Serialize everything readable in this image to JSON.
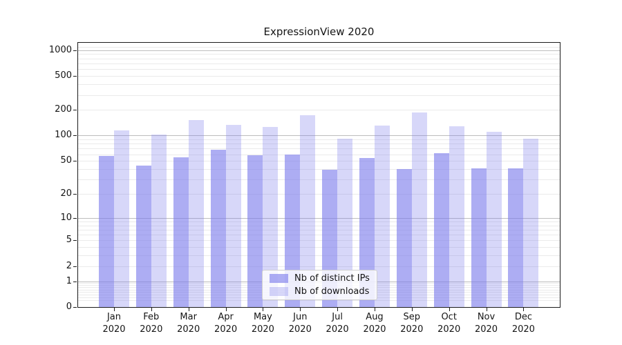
{
  "figure": {
    "background": "#ffffff"
  },
  "chart_data": {
    "type": "bar",
    "title": "ExpressionView 2020",
    "x_tick_months": [
      "Jan",
      "Feb",
      "Mar",
      "Apr",
      "May",
      "Jun",
      "Jul",
      "Aug",
      "Sep",
      "Oct",
      "Nov",
      "Dec"
    ],
    "x_tick_year": "2020",
    "series": [
      {
        "name": "Nb of distinct IPs",
        "color": "rgba(122,122,235,0.62)",
        "values": [
          57,
          44,
          55,
          68,
          58,
          60,
          39,
          54,
          40,
          62,
          41,
          41
        ]
      },
      {
        "name": "Nb of downloads",
        "color": "rgba(122,122,235,0.30)",
        "values": [
          115,
          103,
          152,
          134,
          125,
          174,
          91,
          130,
          188,
          128,
          111,
          92
        ]
      }
    ],
    "y_scale": "log1p",
    "ylim": [
      0,
      1220
    ],
    "y_tick_labels": [
      "1000",
      "500",
      "200",
      "100",
      "50",
      "20",
      "10",
      "5",
      "2",
      "1",
      "0"
    ],
    "y_tick_values": [
      1000,
      500,
      200,
      100,
      50,
      20,
      10,
      5,
      2,
      1,
      0
    ],
    "y_major_gridlines": [
      1000,
      100,
      10,
      1
    ],
    "y_minor_gridlines": [
      1100,
      900,
      800,
      700,
      600,
      500,
      400,
      300,
      200,
      90,
      80,
      70,
      60,
      50,
      40,
      30,
      20,
      9,
      8,
      7,
      6,
      5,
      4,
      3,
      2,
      0.9,
      0.8,
      0.7,
      0.6,
      0.5,
      0.4,
      0.3,
      0.2
    ],
    "grid": true,
    "legend_position": "lower center"
  },
  "colors": {
    "major_grid": "#bdbdbd",
    "minor_grid": "#eaeaea",
    "spine": "#1a1a1a",
    "text": "#141414"
  }
}
